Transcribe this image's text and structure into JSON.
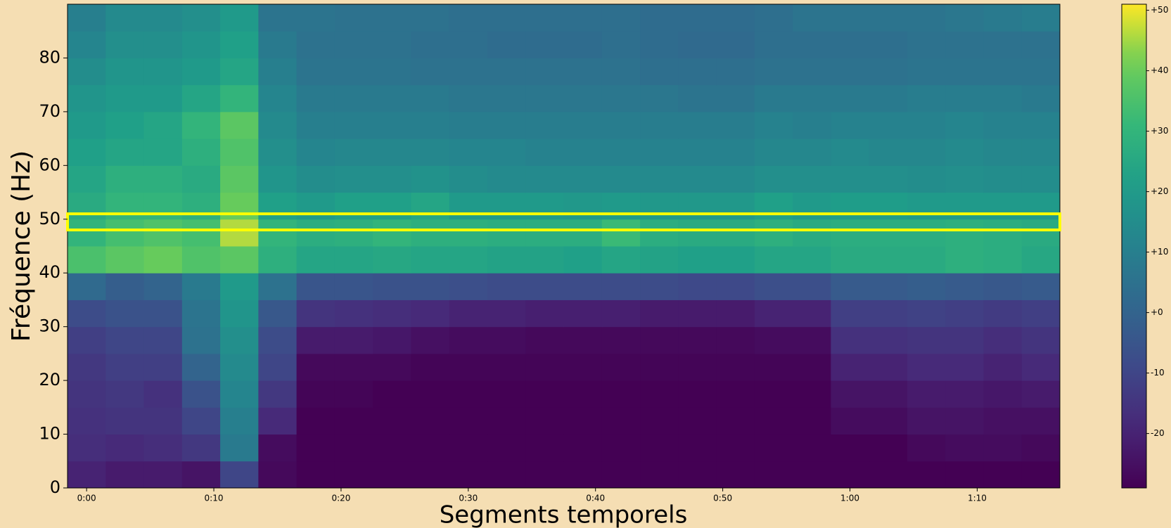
{
  "chart_data": {
    "type": "heatmap",
    "y_label": "Fréquence (Hz)",
    "x_label": "Segments temporels",
    "colormap": "viridis",
    "xbins": [
      -1.5,
      1.5,
      4.5,
      7.5,
      10.5,
      13.5,
      16.5,
      19.5,
      22.5,
      25.5,
      28.5,
      31.5,
      34.5,
      37.5,
      40.5,
      43.5,
      46.5,
      49.5,
      52.5,
      55.5,
      58.5,
      61.5,
      64.5,
      67.5,
      70.5,
      73.5,
      76.5
    ],
    "ybins": [
      0,
      5,
      10,
      15,
      20,
      25,
      30,
      35,
      40,
      45,
      50,
      55,
      60,
      65,
      70,
      75,
      80,
      85,
      90
    ],
    "xlim": [
      -1.5,
      76.5
    ],
    "ylim": [
      0,
      90
    ],
    "xticks": [
      {
        "value": 0,
        "label": "0:00"
      },
      {
        "value": 10,
        "label": "0:10"
      },
      {
        "value": 20,
        "label": "0:20"
      },
      {
        "value": 30,
        "label": "0:30"
      },
      {
        "value": 40,
        "label": "0:40"
      },
      {
        "value": 50,
        "label": "0:50"
      },
      {
        "value": 60,
        "label": "1:00"
      },
      {
        "value": 70,
        "label": "1:10"
      }
    ],
    "yticks": [
      0,
      10,
      20,
      30,
      40,
      50,
      60,
      70,
      80
    ],
    "clim": [
      -29,
      51
    ],
    "cticks": [
      {
        "value": 50,
        "label": "+50"
      },
      {
        "value": 40,
        "label": "+40"
      },
      {
        "value": 30,
        "label": "+30"
      },
      {
        "value": 20,
        "label": "+20"
      },
      {
        "value": 10,
        "label": "+10"
      },
      {
        "value": 0,
        "label": "+0"
      },
      -10,
      -20
    ],
    "highlight_band": [
      48,
      51
    ],
    "highlight_color": "#ffff00",
    "z": [
      [
        -20,
        -22,
        -22,
        -24,
        -10,
        -27,
        -29,
        -29,
        -29,
        -29,
        -29,
        -29,
        -29,
        -29,
        -29,
        -29,
        -29,
        -29,
        -29,
        -29,
        -29,
        -29,
        -29,
        -29,
        -29,
        -29
      ],
      [
        -17,
        -18,
        -17,
        -14,
        8,
        -26,
        -29,
        -29,
        -29,
        -29,
        -29,
        -29,
        -29,
        -29,
        -29,
        -29,
        -29,
        -29,
        -29,
        -29,
        -29,
        -29,
        -27,
        -26,
        -26,
        -27
      ],
      [
        -16,
        -15,
        -15,
        -10,
        10,
        -18,
        -29,
        -29,
        -29,
        -29,
        -29,
        -29,
        -29,
        -29,
        -29,
        -29,
        -29,
        -29,
        -29,
        -29,
        -26,
        -26,
        -24,
        -24,
        -25,
        -25
      ],
      [
        -15,
        -14,
        -16,
        -6,
        12,
        -14,
        -28,
        -28,
        -29,
        -29,
        -29,
        -29,
        -29,
        -29,
        -29,
        -29,
        -29,
        -29,
        -29,
        -29,
        -24,
        -24,
        -22,
        -22,
        -23,
        -22
      ],
      [
        -14,
        -12,
        -12,
        0,
        14,
        -10,
        -27,
        -27,
        -27,
        -28,
        -28,
        -28,
        -28,
        -28,
        -28,
        -28,
        -28,
        -28,
        -28,
        -28,
        -20,
        -20,
        -18,
        -18,
        -20,
        -18
      ],
      [
        -12,
        -10,
        -10,
        5,
        16,
        -8,
        -22,
        -22,
        -23,
        -25,
        -26,
        -26,
        -27,
        -27,
        -27,
        -27,
        -27,
        -27,
        -26,
        -26,
        -16,
        -16,
        -15,
        -15,
        -17,
        -15
      ],
      [
        -8,
        -6,
        -6,
        6,
        18,
        -4,
        -15,
        -16,
        -17,
        -18,
        -20,
        -20,
        -21,
        -21,
        -21,
        -22,
        -22,
        -22,
        -20,
        -20,
        -12,
        -12,
        -11,
        -12,
        -13,
        -12
      ],
      [
        2,
        -2,
        0,
        8,
        20,
        5,
        -5,
        -5,
        -6,
        -6,
        -7,
        -8,
        -8,
        -8,
        -8,
        -8,
        -9,
        -9,
        -7,
        -7,
        -3,
        -3,
        -2,
        -3,
        -4,
        -3
      ],
      [
        35,
        38,
        40,
        36,
        38,
        28,
        24,
        24,
        25,
        24,
        24,
        23,
        23,
        22,
        24,
        23,
        22,
        22,
        24,
        24,
        26,
        26,
        26,
        28,
        27,
        25
      ],
      [
        30,
        34,
        36,
        34,
        46,
        30,
        27,
        28,
        30,
        28,
        28,
        27,
        27,
        27,
        32,
        27,
        26,
        26,
        28,
        26,
        27,
        27,
        27,
        28,
        27,
        26
      ],
      [
        26,
        30,
        30,
        28,
        40,
        22,
        20,
        22,
        22,
        24,
        20,
        20,
        20,
        19,
        20,
        19,
        19,
        19,
        22,
        20,
        21,
        21,
        20,
        20,
        20,
        20
      ],
      [
        24,
        28,
        28,
        26,
        38,
        18,
        15,
        16,
        16,
        17,
        15,
        14,
        14,
        14,
        14,
        14,
        14,
        14,
        16,
        16,
        16,
        16,
        15,
        16,
        15,
        15
      ],
      [
        22,
        24,
        24,
        28,
        36,
        16,
        12,
        13,
        13,
        13,
        12,
        12,
        11,
        11,
        11,
        11,
        11,
        11,
        13,
        13,
        14,
        13,
        13,
        14,
        13,
        13
      ],
      [
        20,
        22,
        24,
        30,
        38,
        14,
        10,
        10,
        10,
        10,
        9,
        9,
        9,
        9,
        9,
        9,
        9,
        9,
        11,
        10,
        11,
        11,
        11,
        12,
        11,
        11
      ],
      [
        18,
        20,
        20,
        24,
        30,
        12,
        8,
        8,
        8,
        8,
        7,
        7,
        7,
        7,
        7,
        7,
        6,
        6,
        8,
        8,
        8,
        8,
        9,
        9,
        9,
        8
      ],
      [
        15,
        18,
        18,
        20,
        24,
        10,
        6,
        6,
        6,
        5,
        5,
        5,
        5,
        5,
        5,
        4,
        4,
        4,
        5,
        5,
        5,
        5,
        6,
        6,
        6,
        6
      ],
      [
        12,
        16,
        16,
        18,
        22,
        8,
        5,
        5,
        5,
        4,
        4,
        3,
        3,
        3,
        4,
        3,
        2,
        2,
        4,
        4,
        4,
        4,
        5,
        5,
        5,
        5
      ],
      [
        10,
        14,
        14,
        16,
        20,
        6,
        6,
        5,
        5,
        5,
        4,
        4,
        4,
        4,
        4,
        3,
        3,
        3,
        4,
        6,
        6,
        6,
        6,
        7,
        8,
        9
      ]
    ]
  }
}
